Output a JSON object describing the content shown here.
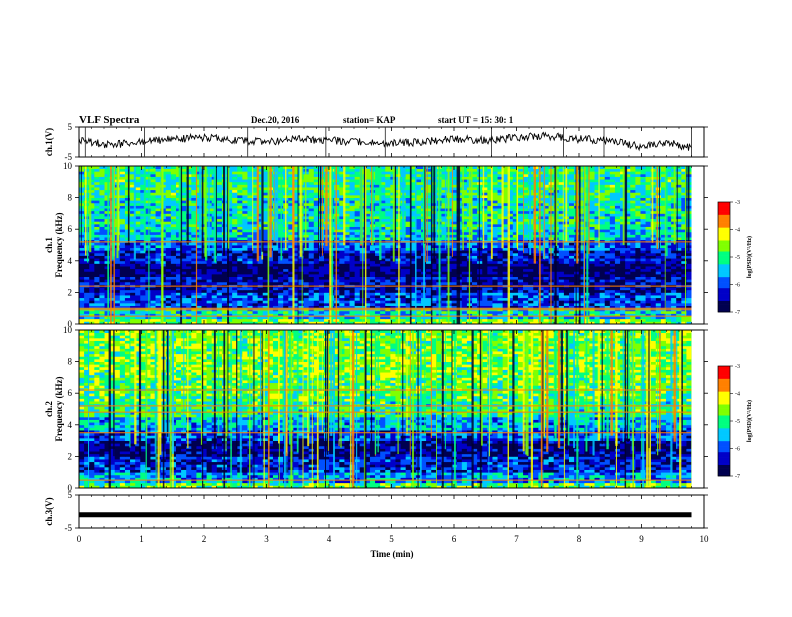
{
  "header": {
    "title": "VLF Spectra",
    "date": "Dec.20, 2016",
    "station": "station= KAP",
    "start": "start  UT =   15: 30: 1"
  },
  "colors": {
    "colormap": [
      "#000050",
      "#0000c8",
      "#0050ff",
      "#00c8ff",
      "#00ff80",
      "#80ff00",
      "#ffff00",
      "#ff8000",
      "#ff0000",
      "#ffffff"
    ],
    "trace": "#000000"
  },
  "chart_data": [
    {
      "type": "line",
      "ylabel": "ch.1(V)",
      "ylim": [
        -5,
        5
      ],
      "y_ticks": [
        "5",
        "-5"
      ],
      "x": [
        0,
        0.5,
        1,
        1.5,
        2,
        2.5,
        3,
        3.5,
        4,
        4.5,
        5,
        5.5,
        6,
        6.5,
        7,
        7.5,
        8,
        8.5,
        9,
        9.5,
        9.8
      ],
      "y": [
        0.5,
        -1.0,
        0.0,
        1.0,
        1.5,
        0.5,
        0.0,
        1.0,
        0.5,
        0.0,
        -0.5,
        0.0,
        1.0,
        0.5,
        1.5,
        2.0,
        1.0,
        0.5,
        -1.5,
        -0.5,
        -2.0
      ]
    },
    {
      "type": "heatmap",
      "ylabel": "ch.1",
      "ylabel2": "Frequency (kHz)",
      "ylim": [
        0,
        10
      ],
      "y_ticks": [
        "0",
        "2",
        "4",
        "6",
        "8",
        "10"
      ],
      "xlim": [
        0,
        9.8
      ],
      "colorbar": {
        "range": [
          -7,
          -3
        ],
        "ticks": [
          "-3",
          "-4",
          "-5",
          "-6",
          "-7"
        ],
        "label": "log(PSD)(V²/Hz)"
      },
      "freq_band_level": [
        {
          "f": [
            0,
            0.4
          ],
          "level": -4.6
        },
        {
          "f": [
            0.4,
            1.0
          ],
          "level": -5.3
        },
        {
          "f": [
            1.0,
            2.0
          ],
          "level": -6.0
        },
        {
          "f": [
            2.0,
            3.0
          ],
          "level": -6.4
        },
        {
          "f": [
            3.0,
            3.8
          ],
          "level": -6.8
        },
        {
          "f": [
            3.8,
            4.6
          ],
          "level": -6.3
        },
        {
          "f": [
            4.6,
            5.3
          ],
          "level": -5.9
        },
        {
          "f": [
            5.3,
            6.0
          ],
          "level": -5.4
        },
        {
          "f": [
            6.0,
            8.0
          ],
          "level": -5.2
        },
        {
          "f": [
            8.0,
            10.0
          ],
          "level": -5.0
        }
      ],
      "line_frequencies_khz": [
        0.5,
        0.9,
        1.0,
        2.4,
        5.2
      ]
    },
    {
      "type": "heatmap",
      "ylabel": "ch.2",
      "ylabel2": "Frequency (kHz)",
      "ylim": [
        0,
        10
      ],
      "y_ticks": [
        "0",
        "2",
        "4",
        "6",
        "8",
        "10"
      ],
      "xlim": [
        0,
        9.8
      ],
      "colorbar": {
        "range": [
          -7,
          -3
        ],
        "ticks": [
          "-3",
          "-4",
          "-5",
          "-6",
          "-7"
        ],
        "label": "log(PSD)(V²/Hz)"
      },
      "freq_band_level": [
        {
          "f": [
            0,
            0.4
          ],
          "level": -4.8
        },
        {
          "f": [
            0.4,
            1.0
          ],
          "level": -5.6
        },
        {
          "f": [
            1.0,
            2.0
          ],
          "level": -6.2
        },
        {
          "f": [
            2.0,
            3.0
          ],
          "level": -6.6
        },
        {
          "f": [
            3.0,
            3.6
          ],
          "level": -6.0
        },
        {
          "f": [
            3.6,
            4.5
          ],
          "level": -5.5
        },
        {
          "f": [
            4.5,
            5.5
          ],
          "level": -5.0
        },
        {
          "f": [
            5.5,
            7.0
          ],
          "level": -4.8
        },
        {
          "f": [
            7.0,
            10.0
          ],
          "level": -4.6
        }
      ],
      "line_frequencies_khz": [
        0.5,
        3.5,
        4.8,
        5.2,
        6.2
      ]
    },
    {
      "type": "line",
      "ylabel": "ch.3(V)",
      "ylim": [
        -5,
        5
      ],
      "y_ticks": [
        "5",
        "-5"
      ],
      "x": [
        0,
        9.8
      ],
      "y": [
        -1,
        -1
      ]
    }
  ],
  "x_axis": {
    "label": "Time  (min)",
    "range": [
      0,
      10
    ],
    "ticks": [
      "0",
      "1",
      "2",
      "3",
      "4",
      "5",
      "6",
      "7",
      "8",
      "9",
      "10"
    ]
  }
}
